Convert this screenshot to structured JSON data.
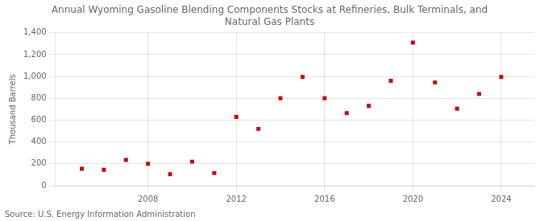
{
  "chart_data": {
    "type": "scatter",
    "title": "Annual Wyoming Gasoline Blending Components Stocks at Refineries, Bulk Terminals, and\nNatural Gas Plants",
    "ylabel": "Thousand Barrels",
    "annotation": "Source: U.S. Energy Information Administration",
    "x": [
      2005,
      2006,
      2007,
      2008,
      2009,
      2010,
      2011,
      2012,
      2013,
      2014,
      2015,
      2016,
      2017,
      2018,
      2019,
      2020,
      2021,
      2022,
      2023,
      2024
    ],
    "values": [
      155,
      145,
      235,
      200,
      105,
      220,
      115,
      630,
      520,
      800,
      995,
      800,
      665,
      730,
      960,
      1310,
      945,
      705,
      840,
      995
    ],
    "color": "#cc0000",
    "marker": "square",
    "xlim": [
      2003.8,
      2025.5
    ],
    "xticks": [
      2008,
      2012,
      2016,
      2020,
      2024
    ],
    "ylim": [
      0,
      1400
    ],
    "yticks": [
      0,
      200,
      400,
      600,
      800,
      {
        "value": 1000,
        "label": "1,000"
      },
      {
        "value": 1200,
        "label": "1,200"
      },
      {
        "value": 1400,
        "label": "1,400"
      }
    ],
    "grid": true
  }
}
